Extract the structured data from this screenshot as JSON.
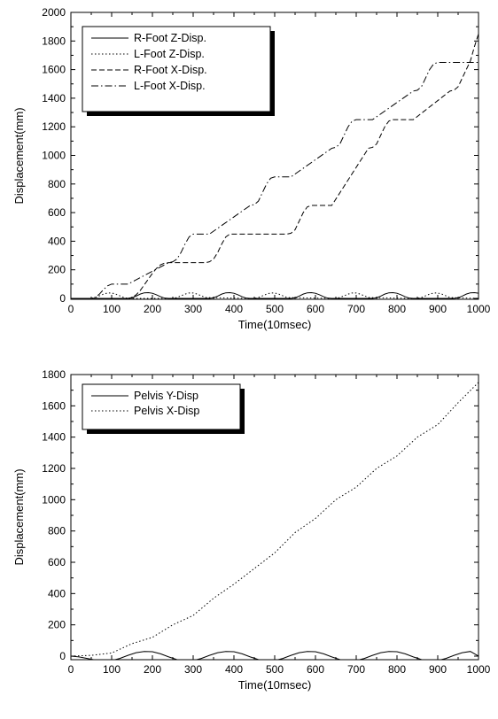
{
  "chart_data": [
    {
      "type": "line",
      "title": "",
      "xlabel": "Time(10msec)",
      "ylabel": "Displacement(mm)",
      "xlim": [
        0,
        1000
      ],
      "ylim": [
        -50,
        2000
      ],
      "xticks": [
        0,
        100,
        200,
        300,
        400,
        500,
        600,
        700,
        800,
        900,
        1000
      ],
      "yticks": [
        0,
        200,
        400,
        600,
        800,
        1000,
        1200,
        1400,
        1600,
        1800,
        2000
      ],
      "legend_position": "top-left",
      "grid": false,
      "series": [
        {
          "name": "R-Foot Z-Disp.",
          "dash": "solid",
          "x": [
            0,
            140,
            150,
            160,
            170,
            180,
            190,
            200,
            210,
            220,
            230,
            240,
            340,
            350,
            360,
            370,
            380,
            390,
            400,
            410,
            420,
            430,
            440,
            540,
            550,
            560,
            570,
            580,
            590,
            600,
            610,
            620,
            630,
            640,
            740,
            750,
            760,
            770,
            780,
            790,
            800,
            810,
            820,
            830,
            840,
            940,
            950,
            960,
            970,
            980,
            990,
            1000
          ],
          "y": [
            0,
            0,
            4,
            16,
            30,
            39,
            40,
            36,
            25,
            12,
            2,
            0,
            0,
            4,
            16,
            30,
            39,
            40,
            36,
            25,
            12,
            2,
            0,
            0,
            4,
            16,
            30,
            39,
            40,
            36,
            25,
            12,
            2,
            0,
            0,
            4,
            16,
            30,
            39,
            40,
            36,
            25,
            12,
            2,
            0,
            0,
            4,
            16,
            30,
            39,
            40,
            36
          ]
        },
        {
          "name": "L-Foot Z-Disp.",
          "dash": "dotted",
          "x": [
            0,
            50,
            60,
            70,
            80,
            90,
            100,
            110,
            120,
            130,
            140,
            250,
            260,
            270,
            280,
            290,
            300,
            310,
            320,
            330,
            440,
            450,
            460,
            470,
            480,
            490,
            500,
            510,
            520,
            530,
            640,
            650,
            660,
            670,
            680,
            690,
            700,
            710,
            720,
            730,
            840,
            850,
            860,
            870,
            880,
            890,
            900,
            910,
            920,
            930,
            1000
          ],
          "y": [
            0,
            0,
            6,
            18,
            30,
            38,
            38,
            30,
            18,
            6,
            0,
            0,
            6,
            18,
            30,
            38,
            38,
            30,
            18,
            6,
            0,
            0,
            6,
            18,
            30,
            38,
            38,
            30,
            18,
            6,
            0,
            0,
            6,
            18,
            30,
            38,
            38,
            30,
            18,
            6,
            0,
            0,
            6,
            18,
            30,
            38,
            38,
            30,
            18,
            6,
            0
          ]
        },
        {
          "name": "R-Foot X-Disp.",
          "dash": "dashed",
          "x": [
            0,
            140,
            150,
            160,
            170,
            180,
            190,
            200,
            210,
            220,
            230,
            240,
            330,
            340,
            350,
            360,
            370,
            380,
            390,
            400,
            410,
            420,
            430,
            440,
            530,
            540,
            550,
            560,
            570,
            580,
            590,
            600,
            610,
            620,
            630,
            640,
            730,
            740,
            750,
            760,
            770,
            780,
            790,
            800,
            810,
            820,
            830,
            840,
            930,
            940,
            950,
            960,
            970,
            980,
            990,
            1000
          ],
          "y": [
            0,
            0,
            6,
            25,
            55,
            95,
            135,
            175,
            210,
            235,
            247,
            250,
            250,
            256,
            275,
            320,
            380,
            430,
            450,
            450,
            450,
            450,
            450,
            450,
            450,
            456,
            480,
            540,
            600,
            640,
            650,
            650,
            650,
            650,
            650,
            650,
            1050,
            1056,
            1080,
            1140,
            1200,
            1240,
            1250,
            1250,
            1250,
            1250,
            1250,
            1250,
            1450,
            1456,
            1480,
            1540,
            1600,
            1660,
            1760,
            1850
          ]
        },
        {
          "name": "L-Foot X-Disp.",
          "dash": "dashdot",
          "x": [
            0,
            50,
            60,
            70,
            80,
            90,
            100,
            110,
            120,
            130,
            140,
            240,
            250,
            260,
            270,
            280,
            290,
            300,
            310,
            320,
            330,
            340,
            440,
            450,
            460,
            470,
            480,
            490,
            500,
            510,
            520,
            530,
            540,
            640,
            650,
            660,
            670,
            680,
            690,
            700,
            710,
            720,
            730,
            740,
            840,
            850,
            860,
            870,
            880,
            890,
            900,
            910,
            920,
            930,
            940,
            1000
          ],
          "y": [
            0,
            0,
            8,
            30,
            62,
            88,
            100,
            100,
            100,
            100,
            100,
            250,
            256,
            275,
            320,
            380,
            430,
            450,
            450,
            450,
            450,
            450,
            650,
            656,
            680,
            740,
            800,
            840,
            850,
            850,
            850,
            850,
            850,
            1050,
            1056,
            1080,
            1140,
            1200,
            1240,
            1250,
            1250,
            1250,
            1250,
            1250,
            1450,
            1456,
            1480,
            1540,
            1600,
            1640,
            1650,
            1650,
            1650,
            1650,
            1650,
            1650
          ]
        }
      ]
    },
    {
      "type": "line",
      "title": "",
      "xlabel": "Time(10msec)",
      "ylabel": "Displacement(mm)",
      "xlim": [
        0,
        1000
      ],
      "ylim": [
        -50,
        1800
      ],
      "xticks": [
        0,
        100,
        200,
        300,
        400,
        500,
        600,
        700,
        800,
        900,
        1000
      ],
      "yticks": [
        0,
        200,
        400,
        600,
        800,
        1000,
        1200,
        1400,
        1600,
        1800
      ],
      "legend_position": "top-left",
      "grid": false,
      "series": [
        {
          "name": "Pelvis Y-Disp",
          "dash": "solid",
          "x": [
            0,
            20,
            40,
            60,
            80,
            100,
            120,
            140,
            160,
            180,
            200,
            220,
            240,
            260,
            280,
            300,
            320,
            340,
            360,
            380,
            400,
            420,
            440,
            460,
            480,
            500,
            520,
            540,
            560,
            580,
            600,
            620,
            640,
            660,
            680,
            700,
            720,
            740,
            760,
            780,
            800,
            820,
            840,
            860,
            880,
            900,
            920,
            940,
            960,
            980,
            1000
          ],
          "y": [
            0,
            -5,
            -15,
            -25,
            -30,
            -28,
            -15,
            5,
            22,
            30,
            28,
            15,
            -5,
            -22,
            -30,
            -28,
            -15,
            5,
            22,
            30,
            28,
            15,
            -5,
            -22,
            -30,
            -28,
            -15,
            5,
            22,
            30,
            28,
            15,
            -5,
            -22,
            -30,
            -28,
            -15,
            5,
            22,
            30,
            28,
            15,
            -5,
            -22,
            -30,
            -28,
            -15,
            5,
            22,
            30,
            0
          ]
        },
        {
          "name": "Pelvis X-Disp",
          "dash": "dotted",
          "x": [
            0,
            50,
            100,
            150,
            200,
            250,
            300,
            350,
            400,
            450,
            500,
            550,
            600,
            650,
            700,
            750,
            800,
            850,
            900,
            950,
            1000
          ],
          "y": [
            0,
            5,
            20,
            80,
            120,
            200,
            260,
            370,
            460,
            560,
            660,
            790,
            880,
            1000,
            1080,
            1200,
            1280,
            1400,
            1480,
            1620,
            1750
          ]
        }
      ]
    }
  ]
}
